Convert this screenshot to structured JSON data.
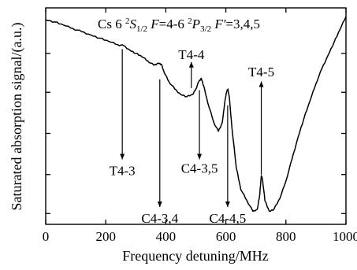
{
  "chart_data": {
    "type": "line",
    "title": {
      "parts": [
        {
          "text": "Cs 6 "
        },
        {
          "text": "2",
          "sup": true
        },
        {
          "text": "S",
          "italic": true
        },
        {
          "text": "1/2",
          "sub": true
        },
        {
          "text": " "
        },
        {
          "text": "F",
          "italic": true
        },
        {
          "text": "=4-6 "
        },
        {
          "text": "2",
          "sup": true
        },
        {
          "text": "P",
          "italic": true
        },
        {
          "text": "3/2",
          "sub": true
        },
        {
          "text": " "
        },
        {
          "text": "F'",
          "italic": true
        },
        {
          "text": "=3,4,5"
        }
      ]
    },
    "xlabel": "Frequency detuning/MHz",
    "ylabel": "Saturated absorption signal/(a.u.)",
    "xlim": [
      0,
      1000
    ],
    "ylim": [
      0,
      1
    ],
    "x_ticks": [
      0,
      200,
      400,
      600,
      800,
      1000
    ],
    "y_ticks": [
      0.05,
      0.23,
      0.42,
      0.61,
      0.79
    ],
    "y_tick_labels_shown": false,
    "grid": false,
    "series": [
      {
        "points": [
          [
            0,
            0.945
          ],
          [
            30,
            0.935
          ],
          [
            60,
            0.92
          ],
          [
            90,
            0.905
          ],
          [
            120,
            0.89
          ],
          [
            150,
            0.875
          ],
          [
            180,
            0.86
          ],
          [
            210,
            0.845
          ],
          [
            240,
            0.83
          ],
          [
            260,
            0.825
          ],
          [
            280,
            0.805
          ],
          [
            300,
            0.79
          ],
          [
            320,
            0.775
          ],
          [
            340,
            0.755
          ],
          [
            360,
            0.735
          ],
          [
            375,
            0.745
          ],
          [
            385,
            0.74
          ],
          [
            395,
            0.7
          ],
          [
            410,
            0.66
          ],
          [
            430,
            0.625
          ],
          [
            450,
            0.6
          ],
          [
            470,
            0.59
          ],
          [
            490,
            0.6
          ],
          [
            500,
            0.625
          ],
          [
            510,
            0.66
          ],
          [
            518,
            0.675
          ],
          [
            526,
            0.64
          ],
          [
            540,
            0.56
          ],
          [
            560,
            0.47
          ],
          [
            575,
            0.43
          ],
          [
            588,
            0.47
          ],
          [
            596,
            0.56
          ],
          [
            602,
            0.61
          ],
          [
            607,
            0.625
          ],
          [
            612,
            0.58
          ],
          [
            620,
            0.45
          ],
          [
            635,
            0.26
          ],
          [
            650,
            0.16
          ],
          [
            670,
            0.11
          ],
          [
            690,
            0.06
          ],
          [
            705,
            0.07
          ],
          [
            713,
            0.14
          ],
          [
            718,
            0.225
          ],
          [
            722,
            0.21
          ],
          [
            730,
            0.11
          ],
          [
            745,
            0.06
          ],
          [
            760,
            0.07
          ],
          [
            780,
            0.12
          ],
          [
            800,
            0.2
          ],
          [
            820,
            0.3
          ],
          [
            840,
            0.4
          ],
          [
            860,
            0.49
          ],
          [
            880,
            0.57
          ],
          [
            900,
            0.65
          ],
          [
            920,
            0.72
          ],
          [
            940,
            0.78
          ],
          [
            960,
            0.84
          ],
          [
            980,
            0.9
          ],
          [
            1000,
            0.96
          ]
        ]
      }
    ],
    "annotations": [
      {
        "label": "T4-3",
        "x": 255,
        "line_top": 0.81,
        "line_bottom": 0.3,
        "label_y": 0.25
      },
      {
        "label": "C4-3,4",
        "x": 380,
        "line_top": 0.67,
        "line_bottom": 0.08,
        "label_y": 0.03
      },
      {
        "label": "T4-4",
        "x": 485,
        "line_top": 0.75,
        "line_bottom": 0.63,
        "label_y": 0.785
      },
      {
        "label": "C4-3,5",
        "x": 512,
        "line_top": 0.62,
        "line_bottom": 0.3,
        "label_y": 0.26
      },
      {
        "label": "C4-4,5",
        "x": 606,
        "line_top": 0.55,
        "line_bottom": 0.08,
        "label_y": 0.03
      },
      {
        "label": "T4-5",
        "x": 718,
        "line_top": 0.66,
        "line_bottom": 0.23,
        "label_y": 0.705
      }
    ]
  }
}
